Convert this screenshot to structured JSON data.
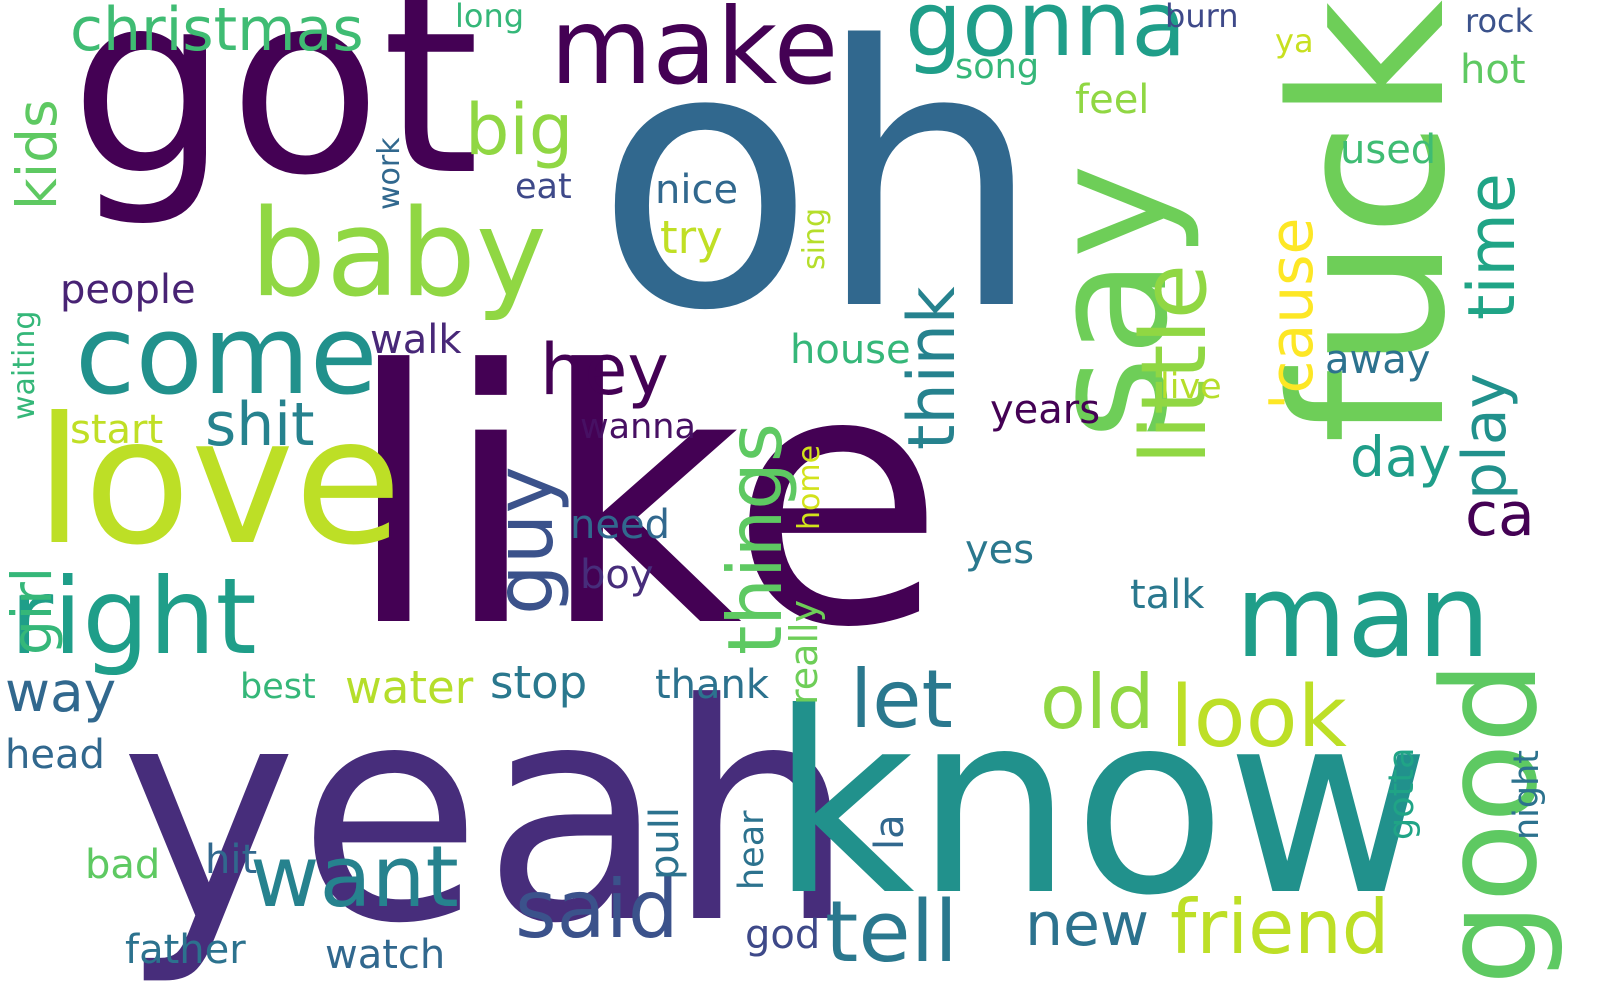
{
  "palette": {
    "background": "#ffffff",
    "colormap": "viridis",
    "dark_purple": "#440154",
    "indigo": "#3b528b",
    "blue": "#31688e",
    "teal": "#21918c",
    "green": "#35b779",
    "lime": "#90d743",
    "yellow_green": "#bddf26",
    "yellow": "#fde725"
  },
  "words": [
    {
      "text": "like",
      "color": "#440154"
    },
    {
      "text": "oh",
      "color": "#31688e"
    },
    {
      "text": "yeah",
      "color": "#472d7b"
    },
    {
      "text": "know",
      "color": "#21918c"
    },
    {
      "text": "got",
      "color": "#440154"
    },
    {
      "text": "fuck",
      "color": "#6ece58"
    },
    {
      "text": "love",
      "color": "#bddf26"
    },
    {
      "text": "baby",
      "color": "#90d743"
    },
    {
      "text": "say",
      "color": "#6ece58"
    },
    {
      "text": "make",
      "color": "#440154"
    },
    {
      "text": "come",
      "color": "#21918c"
    },
    {
      "text": "man",
      "color": "#1f9e89"
    },
    {
      "text": "right",
      "color": "#1f9e89"
    },
    {
      "text": "gonna",
      "color": "#1f9e89"
    },
    {
      "text": "good",
      "color": "#5ec962"
    },
    {
      "text": "little",
      "color": "#90d743"
    },
    {
      "text": "look",
      "color": "#bddf26"
    },
    {
      "text": "want",
      "color": "#26828e"
    },
    {
      "text": "friend",
      "color": "#bddf26"
    },
    {
      "text": "said",
      "color": "#3b528b"
    },
    {
      "text": "tell",
      "color": "#2a788e"
    },
    {
      "text": "guy",
      "color": "#3b528b"
    },
    {
      "text": "old",
      "color": "#90d743"
    },
    {
      "text": "christmas",
      "color": "#3fbc73"
    },
    {
      "text": "things",
      "color": "#5ec962"
    },
    {
      "text": "shit",
      "color": "#26828e"
    },
    {
      "text": "let",
      "color": "#2a788e"
    },
    {
      "text": "big",
      "color": "#90d743"
    },
    {
      "text": "hey",
      "color": "#440154"
    },
    {
      "text": "girl",
      "color": "#35b779"
    },
    {
      "text": "think",
      "color": "#26828e"
    },
    {
      "text": "'cause",
      "color": "#fde725"
    },
    {
      "text": "time",
      "color": "#20a486"
    },
    {
      "text": "play",
      "color": "#21918c"
    },
    {
      "text": "kids",
      "color": "#5ec962"
    },
    {
      "text": "new",
      "color": "#2c728e"
    },
    {
      "text": "way",
      "color": "#31688e"
    },
    {
      "text": "ca",
      "color": "#440154"
    },
    {
      "text": "day",
      "color": "#1f9e89"
    },
    {
      "text": "stop",
      "color": "#2a788e"
    },
    {
      "text": "water",
      "color": "#b5de2b"
    },
    {
      "text": "years",
      "color": "#440154"
    },
    {
      "text": "people",
      "color": "#482374"
    },
    {
      "text": "father",
      "color": "#2c728e"
    },
    {
      "text": "watch",
      "color": "#31688e"
    },
    {
      "text": "god",
      "color": "#3e4989"
    },
    {
      "text": "thank",
      "color": "#2c728e"
    },
    {
      "text": "hit",
      "color": "#31688e"
    },
    {
      "text": "head",
      "color": "#31688e"
    },
    {
      "text": "feel",
      "color": "#90d743"
    },
    {
      "text": "walk",
      "color": "#482878"
    },
    {
      "text": "try",
      "color": "#c0df25"
    },
    {
      "text": "nice",
      "color": "#31688e"
    },
    {
      "text": "house",
      "color": "#35b779"
    },
    {
      "text": "eat",
      "color": "#3e4989"
    },
    {
      "text": "best",
      "color": "#35b779"
    },
    {
      "text": "bad",
      "color": "#5ec962"
    },
    {
      "text": "need",
      "color": "#31688e"
    },
    {
      "text": "boy",
      "color": "#472d7b"
    },
    {
      "text": "talk",
      "color": "#2a788e"
    },
    {
      "text": "yes",
      "color": "#2a788e"
    },
    {
      "text": "wanna",
      "color": "#471063"
    },
    {
      "text": "away",
      "color": "#2c728e"
    },
    {
      "text": "live",
      "color": "#b5de2b"
    },
    {
      "text": "used",
      "color": "#3fbc73"
    },
    {
      "text": "hot",
      "color": "#5ec962"
    },
    {
      "text": "start",
      "color": "#c0df25"
    },
    {
      "text": "song",
      "color": "#35b779"
    },
    {
      "text": "pull",
      "color": "#2c728e"
    },
    {
      "text": "really",
      "color": "#6ece58"
    },
    {
      "text": "gotta",
      "color": "#20a486"
    },
    {
      "text": "night",
      "color": "#2c728e"
    },
    {
      "text": "la",
      "color": "#31688e"
    },
    {
      "text": "hear",
      "color": "#2c728e"
    },
    {
      "text": "rock",
      "color": "#3b528b"
    },
    {
      "text": "burn",
      "color": "#3e4989"
    },
    {
      "text": "long",
      "color": "#35b779"
    },
    {
      "text": "work",
      "color": "#31688e"
    },
    {
      "text": "waiting",
      "color": "#35b779"
    },
    {
      "text": "sing",
      "color": "#b5de2b"
    },
    {
      "text": "home",
      "color": "#d2e21b"
    },
    {
      "text": "ya",
      "color": "#c8e020"
    }
  ]
}
